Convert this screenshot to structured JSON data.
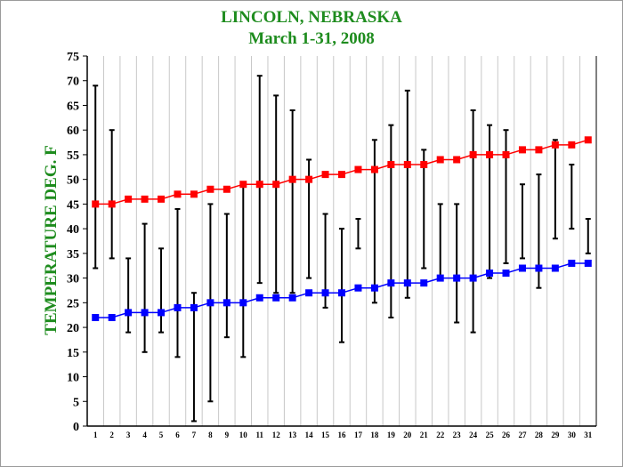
{
  "chart_data": {
    "type": "line",
    "title": "LINCOLN, NEBRASKA",
    "subtitle": "March 1-31,  2008",
    "ylabel": "TEMPERATURE DEG. F",
    "xlabel": "",
    "ylim": [
      0,
      75
    ],
    "ytick_step": 5,
    "x": [
      1,
      2,
      3,
      4,
      5,
      6,
      7,
      8,
      9,
      10,
      11,
      12,
      13,
      14,
      15,
      16,
      17,
      18,
      19,
      20,
      21,
      22,
      23,
      24,
      25,
      26,
      27,
      28,
      29,
      30,
      31
    ],
    "grid": "vertical",
    "legend": "none",
    "colors": {
      "title": "#1e8c1e",
      "high_series": "#ff0000",
      "low_series": "#0000ff",
      "range_bars": "#000000",
      "grid": "#c8c8c8"
    },
    "series": [
      {
        "key": "normal_high",
        "values": [
          45,
          45,
          46,
          46,
          46,
          47,
          47,
          48,
          48,
          49,
          49,
          49,
          50,
          50,
          51,
          51,
          52,
          52,
          53,
          53,
          53,
          54,
          54,
          55,
          55,
          55,
          56,
          56,
          57,
          57,
          58
        ]
      },
      {
        "key": "normal_low",
        "values": [
          22,
          22,
          23,
          23,
          23,
          24,
          24,
          25,
          25,
          25,
          26,
          26,
          26,
          27,
          27,
          27,
          28,
          28,
          29,
          29,
          29,
          30,
          30,
          30,
          31,
          31,
          32,
          32,
          32,
          33,
          33
        ]
      }
    ],
    "observed_range": {
      "high": [
        69,
        60,
        34,
        41,
        36,
        44,
        27,
        45,
        43,
        49,
        71,
        67,
        64,
        54,
        43,
        40,
        42,
        58,
        61,
        68,
        56,
        45,
        45,
        64,
        61,
        60,
        49,
        51,
        58,
        53,
        42
      ],
      "low": [
        32,
        34,
        19,
        15,
        19,
        14,
        1,
        5,
        18,
        14,
        29,
        27,
        27,
        30,
        24,
        17,
        36,
        25,
        22,
        26,
        32,
        30,
        21,
        19,
        30,
        33,
        34,
        28,
        38,
        40,
        35
      ]
    }
  }
}
